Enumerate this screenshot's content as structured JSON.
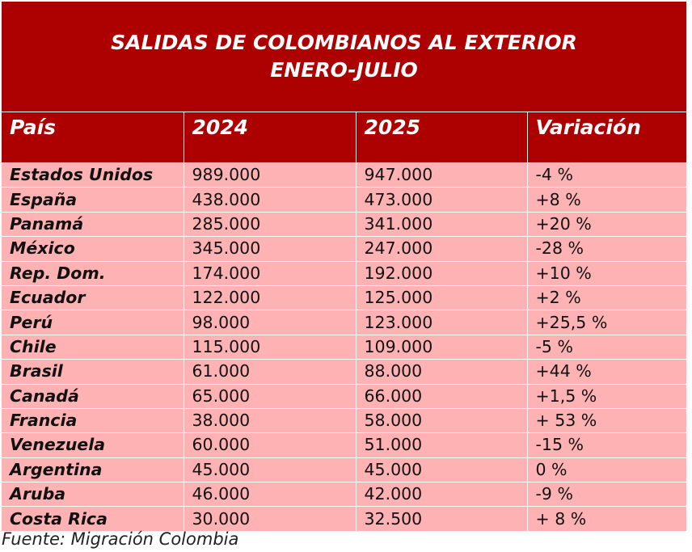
{
  "colors": {
    "header_bg": "#ad0000",
    "header_text": "#ffffff",
    "row_bg": "#ffb2b3",
    "grid_line": "#ffffff"
  },
  "title": {
    "line1": "SALIDAS DE COLOMBIANOS AL EXTERIOR",
    "line2": "ENERO-JULIO"
  },
  "table": {
    "headers": [
      "País",
      "2024",
      "2025",
      "Variación"
    ],
    "rows": [
      [
        "Estados Unidos",
        "989.000",
        "947.000",
        "-4 %"
      ],
      [
        "España",
        "438.000",
        "473.000",
        "+8 %"
      ],
      [
        "Panamá",
        "285.000",
        "341.000",
        "+20 %"
      ],
      [
        "México",
        "345.000",
        "247.000",
        "-28 %"
      ],
      [
        "Rep. Dom.",
        "174.000",
        "192.000",
        "+10 %"
      ],
      [
        "Ecuador",
        "122.000",
        "125.000",
        "+2 %"
      ],
      [
        "Perú",
        "98.000",
        "123.000",
        "+25,5 %"
      ],
      [
        "Chile",
        "115.000",
        "109.000",
        "-5 %"
      ],
      [
        "Brasil",
        "61.000",
        "88.000",
        "+44 %"
      ],
      [
        "Canadá",
        "65.000",
        "66.000",
        "+1,5 %"
      ],
      [
        "Francia",
        "38.000",
        "58.000",
        "+ 53 %"
      ],
      [
        "Venezuela",
        "60.000",
        "51.000",
        "-15 %"
      ],
      [
        "Argentina",
        "45.000",
        "45.000",
        "0 %"
      ],
      [
        "Aruba",
        "46.000",
        "42.000",
        "-9 %"
      ],
      [
        "Costa Rica",
        "30.000",
        "32.500",
        "+ 8 %"
      ]
    ]
  },
  "source": "Fuente: Migración Colombia"
}
